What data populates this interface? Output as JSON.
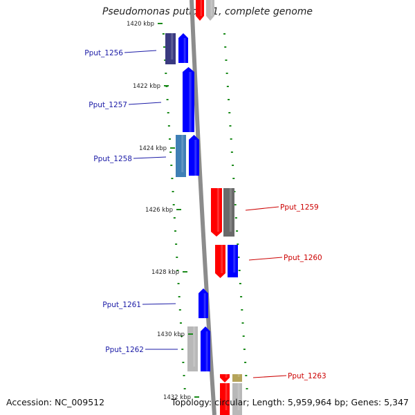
{
  "title": "Pseudomonas putida F1, complete genome",
  "footer": {
    "accession": "Accession: NC_009512",
    "summary": "Topology: circular; Length: 5,959,964 bp; Genes: 5,347"
  },
  "colors": {
    "backbone": "#8c8c8c",
    "tick": "#1a8a1a",
    "forward_label": "#1a1aa6",
    "reverse_label": "#cc0000",
    "blue": "#0000ff",
    "navy": "#3a3a80",
    "steel": "#3f7fb5",
    "red": "#ff0000",
    "gray": "#6a6a6a",
    "lightgray": "#b8b8b8",
    "olive": "#b5a45a"
  },
  "ruler": [
    {
      "label": "1420 kbp"
    },
    {
      "label": "1422 kbp"
    },
    {
      "label": "1424 kbp"
    },
    {
      "label": "1426 kbp"
    },
    {
      "label": "1428 kbp"
    },
    {
      "label": "1430 kbp"
    },
    {
      "label": "1432 kbp"
    }
  ],
  "gene_labels": {
    "forward": [
      "Pput_1256",
      "Pput_1257",
      "Pput_1258",
      "Pput_1261",
      "Pput_1262"
    ],
    "reverse": [
      "Pput_1259",
      "Pput_1260",
      "Pput_1263"
    ]
  }
}
